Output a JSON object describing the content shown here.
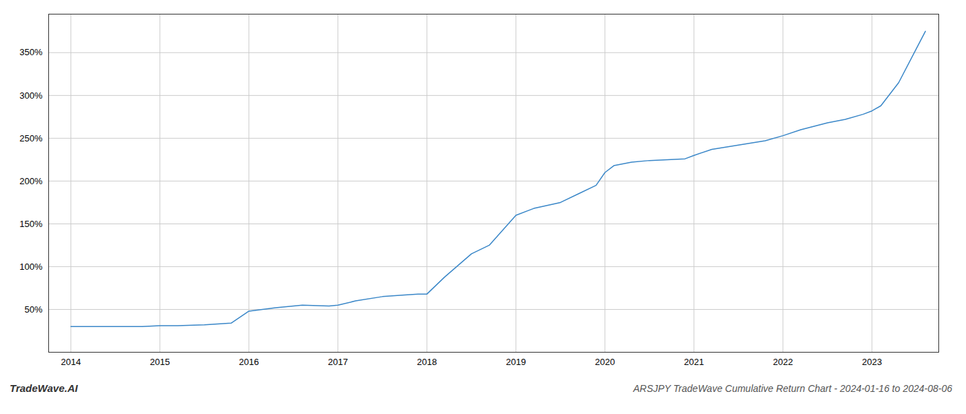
{
  "chart_data": {
    "type": "line",
    "title": "ARSJPY TradeWave Cumulative Return Chart - 2024-01-16 to 2024-08-06",
    "annotations": [
      "TradeWave.AI"
    ],
    "x": [
      2014.0,
      2014.08,
      2014.2,
      2014.5,
      2014.8,
      2015.0,
      2015.2,
      2015.5,
      2015.8,
      2016.0,
      2016.3,
      2016.6,
      2016.9,
      2017.0,
      2017.2,
      2017.5,
      2017.75,
      2017.9,
      2018.0,
      2018.2,
      2018.5,
      2018.7,
      2019.0,
      2019.2,
      2019.5,
      2019.7,
      2019.9,
      2020.0,
      2020.1,
      2020.3,
      2020.5,
      2020.7,
      2020.9,
      2021.0,
      2021.2,
      2021.5,
      2021.8,
      2022.0,
      2022.2,
      2022.5,
      2022.7,
      2022.9,
      2023.0,
      2023.1,
      2023.3,
      2023.5,
      2023.6
    ],
    "values": [
      30,
      30,
      30,
      30,
      30,
      31,
      31,
      32,
      34,
      48,
      52,
      55,
      54,
      55,
      60,
      65,
      67,
      68,
      68,
      88,
      115,
      125,
      160,
      168,
      175,
      185,
      195,
      210,
      218,
      222,
      224,
      225,
      226,
      230,
      237,
      242,
      247,
      253,
      260,
      268,
      272,
      278,
      282,
      288,
      315,
      355,
      375
    ],
    "color": "#3a87c8",
    "xlim": [
      2013.75,
      2023.75
    ],
    "ylim": [
      0,
      395
    ],
    "xticks": [
      2014,
      2015,
      2016,
      2017,
      2018,
      2019,
      2020,
      2021,
      2022,
      2023
    ],
    "yticks": [
      {
        "value": 50,
        "label": "50%"
      },
      {
        "value": 100,
        "label": "100%"
      },
      {
        "value": 150,
        "label": "150%"
      },
      {
        "value": 200,
        "label": "200%"
      },
      {
        "value": 250,
        "label": "250%"
      },
      {
        "value": 300,
        "label": "300%"
      },
      {
        "value": 350,
        "label": "350%"
      }
    ],
    "grid": true
  }
}
